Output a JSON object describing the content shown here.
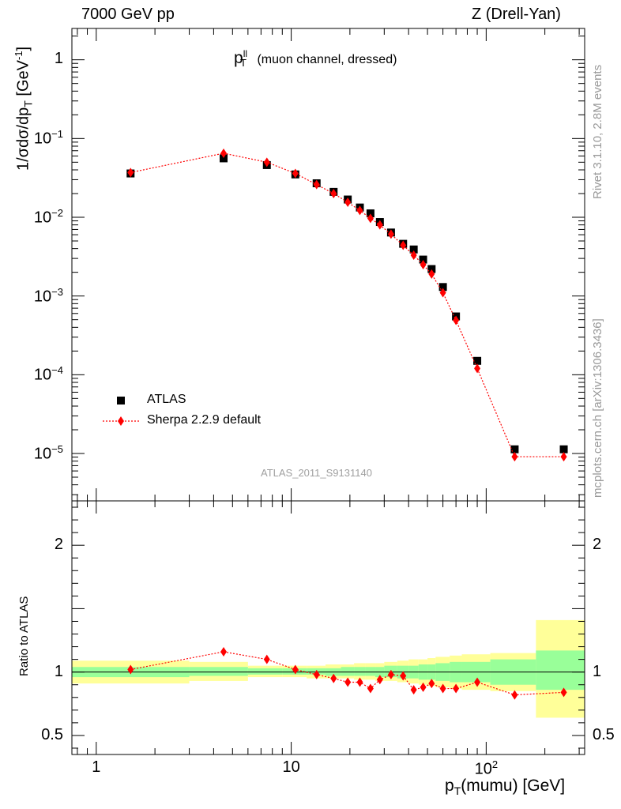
{
  "header": {
    "left": "7000 GeV pp",
    "right": "Z (Drell-Yan)"
  },
  "side_labels": {
    "top": "Rivet 3.1.10,  2.8M events",
    "bottom": "mcplots.cern.ch [arXiv:1306.3436]"
  },
  "chart_data": [
    {
      "type": "scatter",
      "title": "(muon channel, dressed)",
      "title_symbol": "p",
      "title_sup": "ll",
      "title_sub": "T",
      "ylabel": "1/σdσ/dp_T [GeV^-1]",
      "ylabel_parts": {
        "main": "1/σdσ/dp",
        "sub": "T",
        "unit_open": " [GeV",
        "unit_sup": "-1",
        "unit_close": "]"
      },
      "xscale": "log",
      "yscale": "log",
      "xlim": [
        0.75,
        320
      ],
      "ylim": [
        2.5e-06,
        2.5
      ],
      "yticks": [
        {
          "value": 1,
          "base": "1",
          "exp": ""
        },
        {
          "value": 0.1,
          "base": "10",
          "exp": "−1"
        },
        {
          "value": 0.01,
          "base": "10",
          "exp": "−2"
        },
        {
          "value": 0.001,
          "base": "10",
          "exp": "−3"
        },
        {
          "value": 0.0001,
          "base": "10",
          "exp": "−4"
        },
        {
          "value": 1e-05,
          "base": "10",
          "exp": "−5"
        }
      ],
      "legend_position": "bottom-left",
      "watermark": "ATLAS_2011_S9131140",
      "series": [
        {
          "name": "ATLAS",
          "marker": "square",
          "color": "#000000",
          "x": [
            1.5,
            4.5,
            7.5,
            10.5,
            13.5,
            16.5,
            19.5,
            22.5,
            25.5,
            28.5,
            32.5,
            37.5,
            42.5,
            47.5,
            52.5,
            60,
            70,
            90,
            140,
            250
          ],
          "y": [
            0.036,
            0.056,
            0.046,
            0.035,
            0.027,
            0.021,
            0.0168,
            0.0133,
            0.0112,
            0.0087,
            0.0064,
            0.0046,
            0.0039,
            0.0029,
            0.0022,
            0.0013,
            0.00055,
            0.00015,
            1.13e-05,
            1.13e-05
          ]
        },
        {
          "name": "Sherpa 2.2.9 default",
          "marker": "diamond",
          "line": "dotted",
          "color": "#ff0000",
          "x": [
            1.5,
            4.5,
            7.5,
            10.5,
            13.5,
            16.5,
            19.5,
            22.5,
            25.5,
            28.5,
            32.5,
            37.5,
            42.5,
            47.5,
            52.5,
            60,
            70,
            90,
            140,
            250
          ],
          "y": [
            0.037,
            0.065,
            0.05,
            0.036,
            0.026,
            0.02,
            0.0155,
            0.0122,
            0.0097,
            0.008,
            0.0061,
            0.0044,
            0.0033,
            0.0025,
            0.0019,
            0.0011,
            0.00049,
            0.00012,
            9.1e-06,
            9.1e-06
          ]
        }
      ]
    },
    {
      "type": "scatter",
      "ylabel": "Ratio to ATLAS",
      "xlabel": "p_T(mumu) [GeV]",
      "xlabel_parts": {
        "main": "p",
        "sub": "T",
        "rest": "(mumu) [GeV]"
      },
      "xscale": "log",
      "xlim": [
        0.75,
        320
      ],
      "ylim": [
        0.35,
        2.35
      ],
      "xticks": [
        {
          "value": 1,
          "base": "1",
          "exp": ""
        },
        {
          "value": 10,
          "base": "10",
          "exp": ""
        },
        {
          "value": 100,
          "base": "10",
          "exp": "2"
        }
      ],
      "yticks": [
        {
          "value": 0.5,
          "label": "0.5"
        },
        {
          "value": 1,
          "label": "1"
        },
        {
          "value": 2,
          "label": "2"
        }
      ],
      "reference_line": 1,
      "uncertainty_bands": {
        "stat_color": "#99ff99",
        "total_color": "#ffff99",
        "bins": [
          {
            "lo": 0.75,
            "hi": 3,
            "stat": [
              0.96,
              1.04
            ],
            "total": [
              0.91,
              1.09
            ]
          },
          {
            "lo": 3,
            "hi": 6,
            "stat": [
              0.97,
              1.04
            ],
            "total": [
              0.93,
              1.08
            ]
          },
          {
            "lo": 6,
            "hi": 9,
            "stat": [
              0.98,
              1.03
            ],
            "total": [
              0.96,
              1.05
            ]
          },
          {
            "lo": 9,
            "hi": 12,
            "stat": [
              0.98,
              1.03
            ],
            "total": [
              0.96,
              1.05
            ]
          },
          {
            "lo": 12,
            "hi": 15,
            "stat": [
              0.98,
              1.03
            ],
            "total": [
              0.95,
              1.05
            ]
          },
          {
            "lo": 15,
            "hi": 18,
            "stat": [
              0.97,
              1.03
            ],
            "total": [
              0.95,
              1.06
            ]
          },
          {
            "lo": 18,
            "hi": 21,
            "stat": [
              0.97,
              1.04
            ],
            "total": [
              0.95,
              1.06
            ]
          },
          {
            "lo": 21,
            "hi": 24,
            "stat": [
              0.97,
              1.04
            ],
            "total": [
              0.94,
              1.07
            ]
          },
          {
            "lo": 24,
            "hi": 27,
            "stat": [
              0.97,
              1.04
            ],
            "total": [
              0.94,
              1.07
            ]
          },
          {
            "lo": 27,
            "hi": 30,
            "stat": [
              0.96,
              1.04
            ],
            "total": [
              0.93,
              1.07
            ]
          },
          {
            "lo": 30,
            "hi": 35,
            "stat": [
              0.96,
              1.05
            ],
            "total": [
              0.93,
              1.08
            ]
          },
          {
            "lo": 35,
            "hi": 40,
            "stat": [
              0.95,
              1.05
            ],
            "total": [
              0.92,
              1.09
            ]
          },
          {
            "lo": 40,
            "hi": 45,
            "stat": [
              0.95,
              1.05
            ],
            "total": [
              0.91,
              1.1
            ]
          },
          {
            "lo": 45,
            "hi": 50,
            "stat": [
              0.94,
              1.06
            ],
            "total": [
              0.9,
              1.1
            ]
          },
          {
            "lo": 50,
            "hi": 55,
            "stat": [
              0.94,
              1.06
            ],
            "total": [
              0.89,
              1.11
            ]
          },
          {
            "lo": 55,
            "hi": 65,
            "stat": [
              0.93,
              1.07
            ],
            "total": [
              0.88,
              1.12
            ]
          },
          {
            "lo": 65,
            "hi": 75,
            "stat": [
              0.92,
              1.08
            ],
            "total": [
              0.87,
              1.13
            ]
          },
          {
            "lo": 75,
            "hi": 105,
            "stat": [
              0.92,
              1.08
            ],
            "total": [
              0.86,
              1.14
            ]
          },
          {
            "lo": 105,
            "hi": 180,
            "stat": [
              0.9,
              1.1
            ],
            "total": [
              0.85,
              1.15
            ]
          },
          {
            "lo": 180,
            "hi": 320,
            "stat": [
              0.86,
              1.17
            ],
            "total": [
              0.64,
              1.41
            ]
          }
        ]
      },
      "series": [
        {
          "name": "Sherpa 2.2.9 default",
          "marker": "diamond",
          "line": "dotted",
          "color": "#ff0000",
          "x": [
            1.5,
            4.5,
            7.5,
            10.5,
            13.5,
            16.5,
            19.5,
            22.5,
            25.5,
            28.5,
            32.5,
            37.5,
            42.5,
            47.5,
            52.5,
            60,
            70,
            90,
            140,
            250
          ],
          "y": [
            1.02,
            1.16,
            1.1,
            1.02,
            0.98,
            0.95,
            0.92,
            0.92,
            0.87,
            0.94,
            0.98,
            0.97,
            0.86,
            0.88,
            0.91,
            0.87,
            0.87,
            0.92,
            0.82,
            0.84
          ]
        }
      ]
    }
  ]
}
